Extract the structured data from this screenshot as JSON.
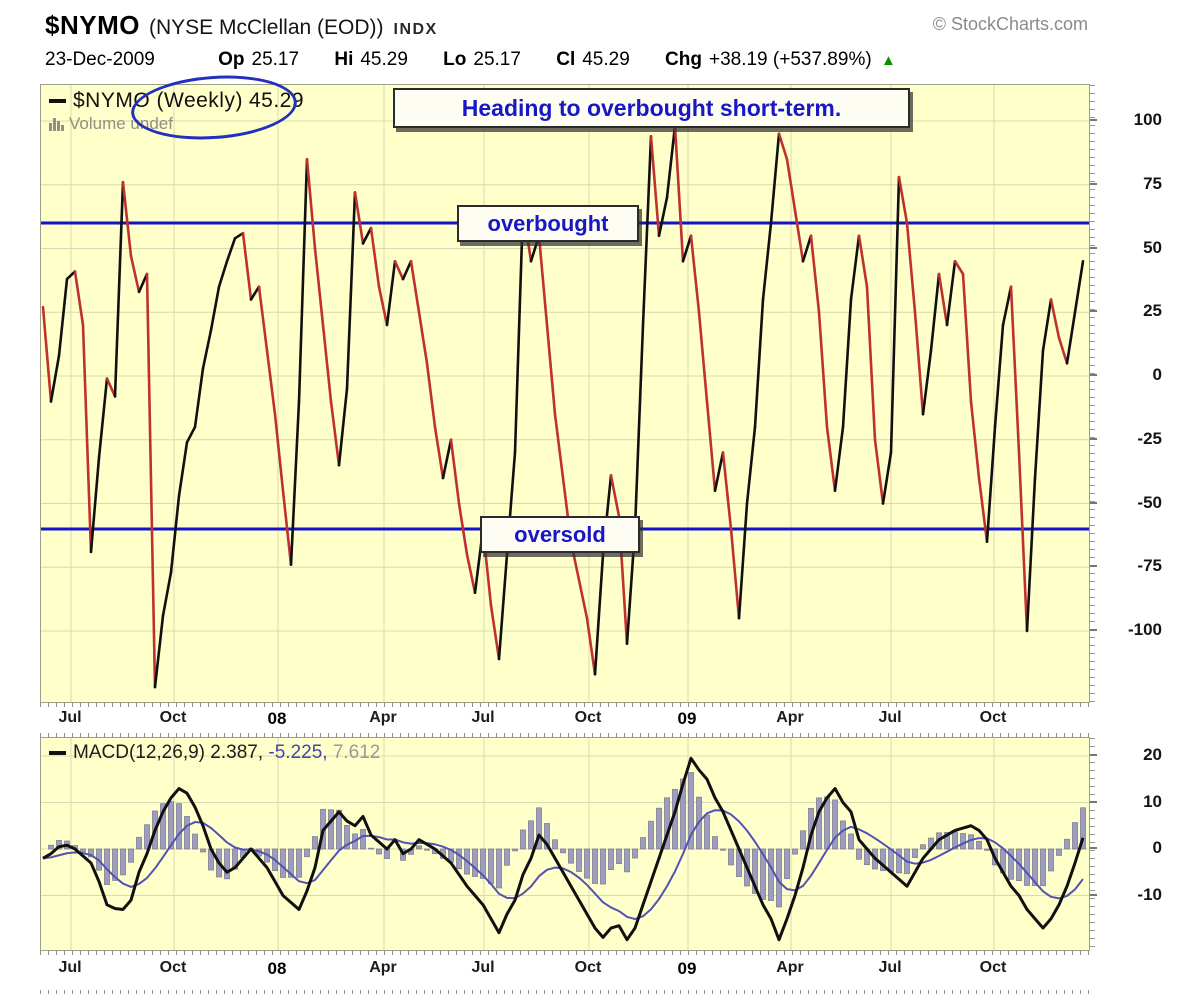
{
  "header": {
    "symbol": "$NYMO",
    "name": "(NYSE McClellan (EOD))",
    "exchange": "INDX",
    "copyright": "© StockCharts.com",
    "date": "23-Dec-2009",
    "quote": {
      "op_label": "Op",
      "op": "25.17",
      "hi_label": "Hi",
      "hi": "45.29",
      "lo_label": "Lo",
      "lo": "25.17",
      "cl_label": "Cl",
      "cl": "45.29",
      "chg_label": "Chg",
      "chg": "+38.19 (+537.89%)",
      "arrow": "▲"
    }
  },
  "main_chart": {
    "legend_dash": "—",
    "legend_label": "$NYMO (Weekly)",
    "legend_value": "45.29",
    "volume_label": "Volume undef"
  },
  "annotations": {
    "heading": "Heading to overbought short-term.",
    "overbought": "overbought",
    "oversold": "oversold"
  },
  "macd_chart": {
    "legend_dash": "—",
    "legend_label": "MACD(12,26,9)",
    "macd_value": "2.387,",
    "signal_value": "-5.225,",
    "hist_value": "7.612"
  },
  "colors": {
    "background": "#FFFFC9",
    "grid": "#d8d8b4",
    "threshold": "#1212c8",
    "up": "#101010",
    "down": "#bf3030",
    "signal": "#5252b4",
    "hist": "#9c9cc4",
    "hist_border": "#80808e",
    "annotation_text": "#1717c4",
    "arrow_up": "#089000"
  },
  "chart_data": [
    {
      "type": "line",
      "title": "$NYMO (Weekly) — NYSE McClellan Oscillator",
      "y_ticks": [
        100,
        75,
        50,
        25,
        0,
        -25,
        -50,
        -75,
        -100
      ],
      "ylim": [
        -126,
        114
      ],
      "overbought_level": 60,
      "oversold_level": -60,
      "x_labels": [
        "Jul",
        "Oct",
        "08",
        "Apr",
        "Jul",
        "Oct",
        "09",
        "Apr",
        "Jul",
        "Oct"
      ],
      "x_label_bold_indices": [
        2,
        6
      ],
      "last_value": 45.29,
      "series": [
        {
          "name": "$NYMO weekly close",
          "values": [
            27,
            -10,
            8,
            38,
            41,
            20,
            -69,
            -32,
            -1,
            -8,
            76,
            47,
            33,
            40,
            -122,
            -94,
            -77,
            -47,
            -26,
            -20,
            3,
            18,
            35,
            45,
            54,
            56,
            30,
            35,
            10,
            -15,
            -45,
            -74,
            -10,
            85,
            50,
            20,
            -10,
            -35,
            -5,
            72,
            52,
            58,
            35,
            20,
            45,
            38,
            45,
            25,
            5,
            -20,
            -40,
            -25,
            -50,
            -70,
            -85,
            -60,
            -90,
            -111,
            -70,
            -30,
            66,
            45,
            55,
            20,
            -15,
            -40,
            -65,
            -80,
            -95,
            -117,
            -70,
            -39,
            -55,
            -105,
            -60,
            20,
            94,
            55,
            70,
            98,
            45,
            55,
            25,
            -10,
            -45,
            -30,
            -60,
            -95,
            -50,
            -20,
            30,
            60,
            95,
            85,
            65,
            45,
            55,
            25,
            -20,
            -45,
            -20,
            30,
            55,
            35,
            -25,
            -50,
            -30,
            78,
            60,
            25,
            -15,
            10,
            40,
            20,
            45,
            40,
            -10,
            -40,
            -65,
            -20,
            20,
            35,
            -30,
            -100,
            -40,
            10,
            30,
            15,
            5,
            25,
            45
          ]
        }
      ]
    },
    {
      "type": "macd",
      "title": "MACD(12,26,9)",
      "params": [
        12,
        26,
        9
      ],
      "y_ticks": [
        20,
        10,
        0,
        -10
      ],
      "ylim": [
        -22,
        24
      ],
      "x_labels": [
        "Jul",
        "Oct",
        "08",
        "Apr",
        "Jul",
        "Oct",
        "09",
        "Apr",
        "Jul",
        "Oct"
      ],
      "last": {
        "macd": 2.387,
        "signal": -5.225,
        "histogram": 7.612
      },
      "macd_values": [
        -2,
        -1,
        0.5,
        0.8,
        0,
        -1.5,
        -3,
        -7,
        -12,
        -12.8,
        -13,
        -11,
        -5,
        -1,
        4,
        8,
        11,
        13,
        12,
        9,
        5,
        0,
        -3,
        -5,
        -4,
        -2,
        0,
        -2,
        -4,
        -7,
        -10,
        -11.5,
        -13,
        -9,
        -4,
        4,
        6,
        8,
        6,
        5,
        7,
        3,
        1.5,
        0,
        2,
        -1,
        0,
        2,
        1,
        0,
        -1.5,
        -3,
        -5.5,
        -8,
        -10,
        -12,
        -15,
        -18,
        -14,
        -11,
        -5.5,
        -2,
        3,
        1,
        -2,
        -5,
        -8,
        -11,
        -14,
        -17,
        -19,
        -17,
        -16.5,
        -19.5,
        -17,
        -12,
        -7,
        -2,
        3,
        8,
        14,
        19.5,
        17,
        15,
        11,
        8,
        4,
        0,
        -4,
        -8,
        -12,
        -15,
        -19.5,
        -15,
        -10,
        -4,
        3,
        8,
        11,
        13,
        10,
        8,
        2,
        0,
        -2,
        -3.5,
        -5,
        -6.5,
        -8,
        -5,
        -2,
        0,
        2,
        3,
        4,
        4.5,
        5,
        4,
        2,
        -2,
        -5,
        -8,
        -10,
        -13,
        -15,
        -17,
        -15,
        -12,
        -8,
        -3,
        2.4
      ]
    }
  ]
}
